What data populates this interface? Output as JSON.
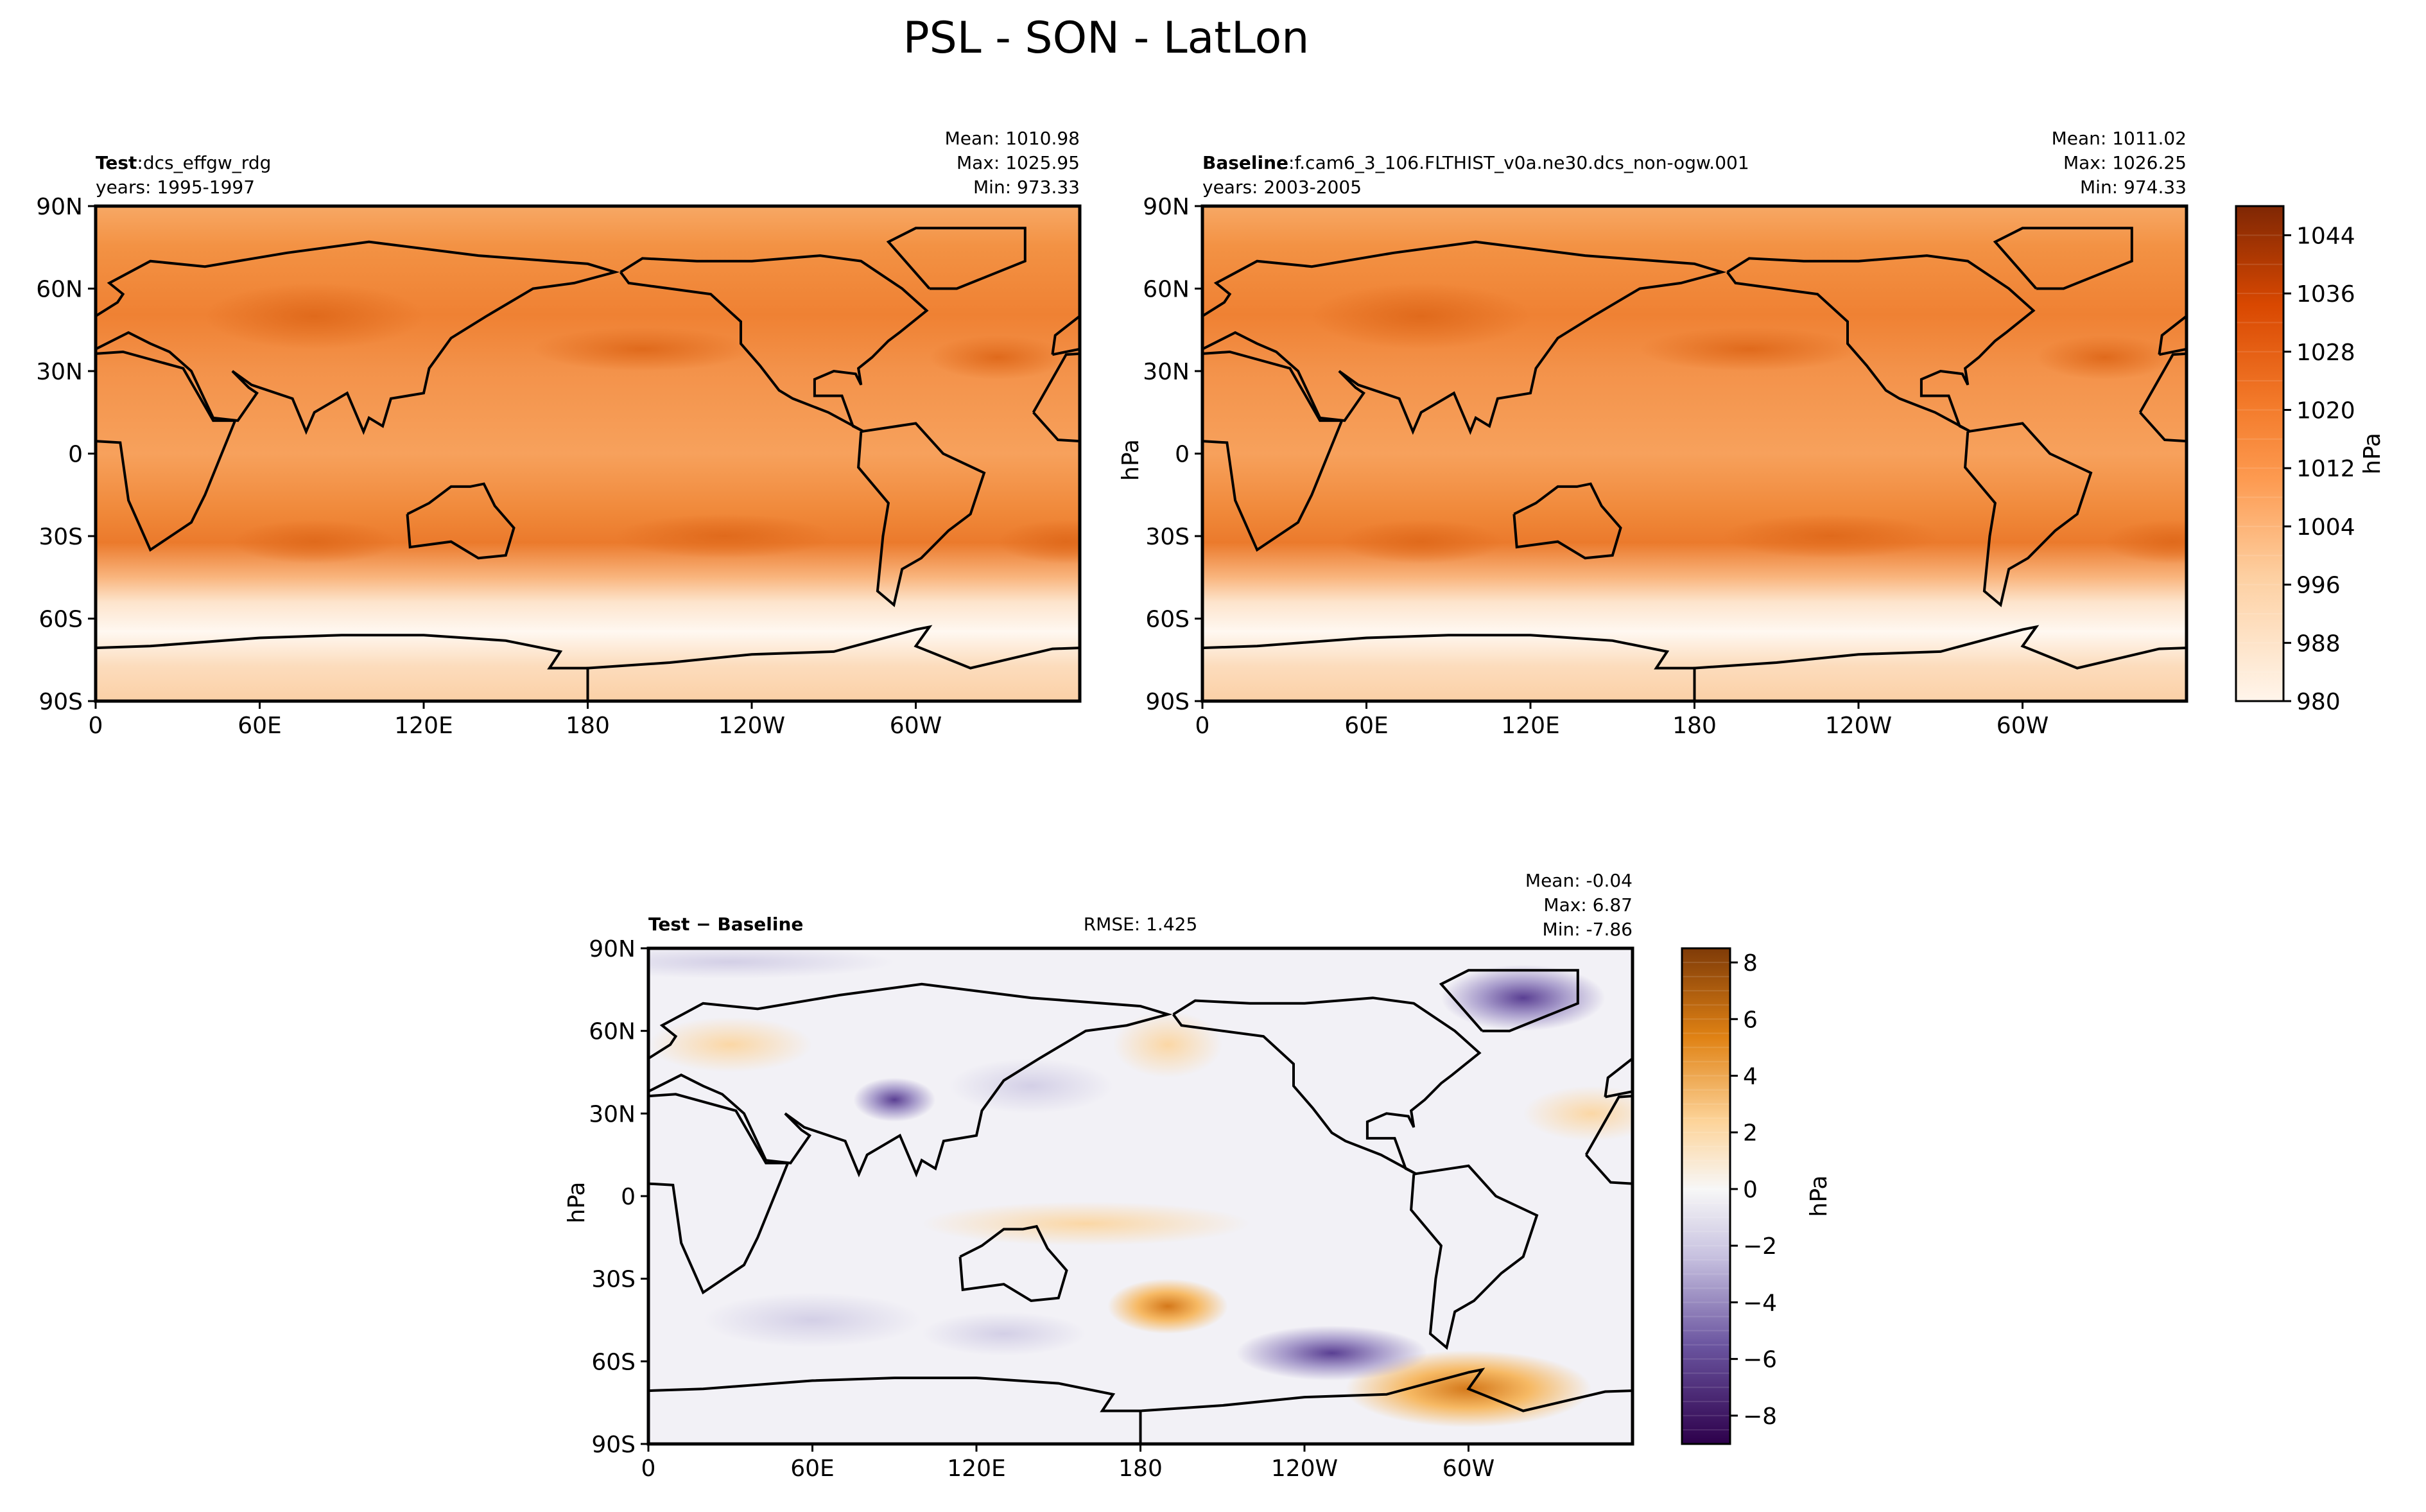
{
  "chart_data": {
    "title": "PSL - SON - LatLon",
    "panels": [
      {
        "type": "heatmap",
        "label_bold": "Test",
        "label": ":dcs_effgw_rdg",
        "years": "years: 1995-1997",
        "stats": {
          "mean": "Mean: 1010.98",
          "max": "Max: 1025.95",
          "min": "Min: 973.33"
        },
        "xticks": [
          "0",
          "60E",
          "120E",
          "180",
          "120W",
          "60W"
        ],
        "yticks": [
          "90N",
          "60N",
          "30N",
          "0",
          "30S",
          "60S",
          "90S"
        ],
        "ylabel": ""
      },
      {
        "type": "heatmap",
        "label_bold": "Baseline",
        "label": ":f.cam6_3_106.FLTHIST_v0a.ne30.dcs_non-ogw.001",
        "years": "years: 2003-2005",
        "stats": {
          "mean": "Mean: 1011.02",
          "max": "Max: 1026.25",
          "min": "Min: 974.33"
        },
        "xticks": [
          "0",
          "60E",
          "120E",
          "180",
          "120W",
          "60W"
        ],
        "yticks": [
          "90N",
          "60N",
          "30N",
          "0",
          "30S",
          "60S",
          "90S"
        ],
        "ylabel": "hPa"
      },
      {
        "type": "heatmap",
        "label_bold": "Test − Baseline",
        "rmse": "RMSE: 1.425",
        "stats": {
          "mean": "Mean: -0.04",
          "max": "Max:  6.87",
          "min": "Min: -7.86"
        },
        "xticks": [
          "0",
          "60E",
          "120E",
          "180",
          "120W",
          "60W"
        ],
        "yticks": [
          "90N",
          "60N",
          "30N",
          "0",
          "30S",
          "60S",
          "90S"
        ],
        "ylabel": "hPa"
      }
    ],
    "colorbars": [
      {
        "label": "hPa",
        "range": [
          980,
          1048
        ],
        "ticks": [
          "980",
          "988",
          "996",
          "1004",
          "1012",
          "1020",
          "1028",
          "1036",
          "1044"
        ],
        "tick_values": [
          980,
          988,
          996,
          1004,
          1012,
          1020,
          1028,
          1036,
          1044
        ],
        "colormap": "Oranges",
        "colors": [
          "#fff5eb",
          "#fd8d3c",
          "#7f2704"
        ]
      },
      {
        "label": "hPa",
        "range": [
          -9,
          8.5
        ],
        "ticks": [
          "−8",
          "−6",
          "−4",
          "−2",
          "0",
          "2",
          "4",
          "6",
          "8"
        ],
        "tick_values": [
          -8,
          -6,
          -4,
          -2,
          0,
          2,
          4,
          6,
          8
        ],
        "colormap": "PuOr_r",
        "colors": [
          "#2d004b",
          "#f7f7f7",
          "#7f3b08"
        ]
      }
    ]
  }
}
